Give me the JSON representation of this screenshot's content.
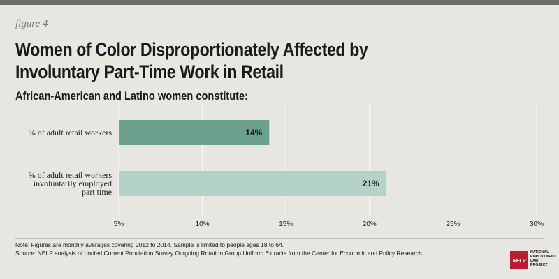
{
  "header": {
    "figure_label": "figure 4",
    "title_line1": "Women of Color Disproportionately Affected by",
    "title_line2": "Involuntary Part-Time Work in Retail",
    "subtitle": "African-American and Latino women constitute:"
  },
  "chart_data": {
    "type": "bar",
    "orientation": "horizontal",
    "categories": [
      [
        "% of adult retail workers"
      ],
      [
        "% of adult retail workers",
        "involuntarily employed",
        "part time"
      ]
    ],
    "values": [
      14,
      21
    ],
    "data_labels": [
      "14%",
      "21%"
    ],
    "bar_colors": [
      "#6ba08c",
      "#b4d2c8"
    ],
    "xlim": [
      5,
      30
    ],
    "xticks": [
      5,
      10,
      15,
      20,
      25,
      30
    ],
    "xtick_labels": [
      "5%",
      "10%",
      "15%",
      "20%",
      "25%",
      "30%"
    ],
    "grid": "vertical",
    "grid_color": "#ffffff",
    "title": "Women of Color Disproportionately Affected by Involuntary Part-Time Work in Retail",
    "xlabel": "",
    "ylabel": ""
  },
  "footer": {
    "note": "Note: Figures are monthly averages covering 2012 to 2014.  Sample is limited to people ages 18 to 64.",
    "source": "Source: NELP analysis of pooled Current Population Survey Outgoing Rotation Group Uniform Extracts from the Center for Economic and Policy Research."
  },
  "logo": {
    "mark": "NELP",
    "text": "National Employment Law Project"
  },
  "colors": {
    "background": "#e8e6e1",
    "top_bar": "#6b6b6b",
    "logo_red": "#b71e2d"
  }
}
